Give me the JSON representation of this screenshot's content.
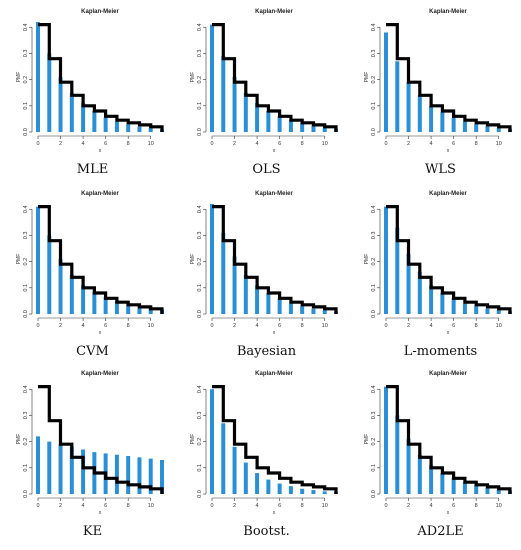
{
  "chart_data": [
    {
      "type": "bar",
      "method": "MLE",
      "title": "Kaplan-Meier",
      "xlabel": "x",
      "ylabel": "PMF",
      "x": [
        0,
        1,
        2,
        3,
        4,
        5,
        6,
        7,
        8,
        9,
        10,
        11
      ],
      "xlim": [
        0,
        11
      ],
      "ylim": [
        0,
        0.42
      ],
      "xticks": [
        0,
        2,
        4,
        6,
        8,
        10
      ],
      "yticks": [
        0.0,
        0.1,
        0.2,
        0.3,
        0.4
      ],
      "km_pmf": [
        0.41,
        0.28,
        0.19,
        0.14,
        0.1,
        0.08,
        0.06,
        0.045,
        0.035,
        0.027,
        0.02,
        0.015
      ],
      "fitted_pmf": [
        0.42,
        0.3,
        0.21,
        0.15,
        0.11,
        0.08,
        0.055,
        0.04,
        0.03,
        0.02,
        0.015,
        0.01
      ]
    },
    {
      "type": "bar",
      "method": "OLS",
      "title": "Kaplan-Meier",
      "xlabel": "x",
      "ylabel": "PMF",
      "x": [
        0,
        1,
        2,
        3,
        4,
        5,
        6,
        7,
        8,
        9,
        10,
        11
      ],
      "xlim": [
        0,
        11
      ],
      "ylim": [
        0,
        0.42
      ],
      "xticks": [
        0,
        2,
        4,
        6,
        8,
        10
      ],
      "yticks": [
        0.0,
        0.1,
        0.2,
        0.3,
        0.4
      ],
      "km_pmf": [
        0.41,
        0.28,
        0.19,
        0.14,
        0.1,
        0.08,
        0.06,
        0.045,
        0.035,
        0.027,
        0.02,
        0.015
      ],
      "fitted_pmf": [
        0.41,
        0.29,
        0.21,
        0.15,
        0.11,
        0.08,
        0.06,
        0.045,
        0.035,
        0.025,
        0.018,
        0.013
      ]
    },
    {
      "type": "bar",
      "method": "WLS",
      "title": "Kaplan-Meier",
      "xlabel": "x",
      "ylabel": "PMF",
      "x": [
        0,
        1,
        2,
        3,
        4,
        5,
        6,
        7,
        8,
        9,
        10,
        11
      ],
      "xlim": [
        0,
        11
      ],
      "ylim": [
        0,
        0.42
      ],
      "xticks": [
        0,
        2,
        4,
        6,
        8,
        10
      ],
      "yticks": [
        0.0,
        0.1,
        0.2,
        0.3,
        0.4
      ],
      "km_pmf": [
        0.41,
        0.28,
        0.19,
        0.14,
        0.1,
        0.08,
        0.06,
        0.045,
        0.035,
        0.027,
        0.02,
        0.015
      ],
      "fitted_pmf": [
        0.38,
        0.27,
        0.19,
        0.14,
        0.1,
        0.075,
        0.055,
        0.04,
        0.03,
        0.022,
        0.016,
        0.012
      ]
    },
    {
      "type": "bar",
      "method": "CVM",
      "title": "Kaplan-Meier",
      "xlabel": "x",
      "ylabel": "PMF",
      "x": [
        0,
        1,
        2,
        3,
        4,
        5,
        6,
        7,
        8,
        9,
        10,
        11
      ],
      "xlim": [
        0,
        11
      ],
      "ylim": [
        0,
        0.42
      ],
      "xticks": [
        0,
        2,
        4,
        6,
        8,
        10
      ],
      "yticks": [
        0.0,
        0.1,
        0.2,
        0.3,
        0.4
      ],
      "km_pmf": [
        0.41,
        0.28,
        0.19,
        0.14,
        0.1,
        0.08,
        0.06,
        0.045,
        0.035,
        0.027,
        0.02,
        0.015
      ],
      "fitted_pmf": [
        0.41,
        0.3,
        0.21,
        0.15,
        0.11,
        0.085,
        0.065,
        0.05,
        0.04,
        0.03,
        0.022,
        0.016
      ]
    },
    {
      "type": "bar",
      "method": "Bayesian",
      "title": "Kaplan-Meier",
      "xlabel": "x",
      "ylabel": "PMF",
      "x": [
        0,
        1,
        2,
        3,
        4,
        5,
        6,
        7,
        8,
        9,
        10,
        11
      ],
      "xlim": [
        0,
        11
      ],
      "ylim": [
        0,
        0.42
      ],
      "xticks": [
        0,
        2,
        4,
        6,
        8,
        10
      ],
      "yticks": [
        0.0,
        0.1,
        0.2,
        0.3,
        0.4
      ],
      "km_pmf": [
        0.41,
        0.28,
        0.19,
        0.14,
        0.1,
        0.08,
        0.06,
        0.045,
        0.035,
        0.027,
        0.02,
        0.015
      ],
      "fitted_pmf": [
        0.42,
        0.31,
        0.22,
        0.15,
        0.11,
        0.08,
        0.06,
        0.04,
        0.03,
        0.02,
        0.015,
        0.01
      ]
    },
    {
      "type": "bar",
      "method": "L-moments",
      "title": "Kaplan-Meier",
      "xlabel": "x",
      "ylabel": "PMF",
      "x": [
        0,
        1,
        2,
        3,
        4,
        5,
        6,
        7,
        8,
        9,
        10,
        11
      ],
      "xlim": [
        0,
        11
      ],
      "ylim": [
        0,
        0.42
      ],
      "xticks": [
        0,
        2,
        4,
        6,
        8,
        10
      ],
      "yticks": [
        0.0,
        0.1,
        0.2,
        0.3,
        0.4
      ],
      "km_pmf": [
        0.41,
        0.28,
        0.19,
        0.14,
        0.1,
        0.08,
        0.06,
        0.045,
        0.035,
        0.027,
        0.02,
        0.015
      ],
      "fitted_pmf": [
        0.41,
        0.33,
        0.23,
        0.16,
        0.11,
        0.08,
        0.06,
        0.04,
        0.03,
        0.02,
        0.015,
        0.01
      ]
    },
    {
      "type": "bar",
      "method": "KE",
      "title": "Kaplan-Meier",
      "xlabel": "x",
      "ylabel": "PMF",
      "x": [
        0,
        1,
        2,
        3,
        4,
        5,
        6,
        7,
        8,
        9,
        10,
        11
      ],
      "xlim": [
        0,
        11
      ],
      "ylim": [
        0,
        0.42
      ],
      "xticks": [
        0,
        2,
        4,
        6,
        8,
        10
      ],
      "yticks": [
        0.0,
        0.1,
        0.2,
        0.3,
        0.4
      ],
      "km_pmf": [
        0.41,
        0.28,
        0.19,
        0.14,
        0.1,
        0.08,
        0.06,
        0.045,
        0.035,
        0.027,
        0.02,
        0.015
      ],
      "fitted_pmf": [
        0.22,
        0.2,
        0.19,
        0.18,
        0.17,
        0.16,
        0.155,
        0.15,
        0.145,
        0.14,
        0.135,
        0.13
      ]
    },
    {
      "type": "bar",
      "method": "Bootst.",
      "title": "Kaplan-Meier",
      "xlabel": "x",
      "ylabel": "PMF",
      "x": [
        0,
        1,
        2,
        3,
        4,
        5,
        6,
        7,
        8,
        9,
        10,
        11
      ],
      "xlim": [
        0,
        11
      ],
      "ylim": [
        0,
        0.42
      ],
      "xticks": [
        0,
        2,
        4,
        6,
        8,
        10
      ],
      "yticks": [
        0.0,
        0.1,
        0.2,
        0.3,
        0.4
      ],
      "km_pmf": [
        0.41,
        0.28,
        0.19,
        0.14,
        0.1,
        0.08,
        0.06,
        0.045,
        0.035,
        0.027,
        0.02,
        0.015
      ],
      "fitted_pmf": [
        0.4,
        0.27,
        0.18,
        0.12,
        0.08,
        0.055,
        0.04,
        0.03,
        0.02,
        0.015,
        0.01,
        0.008
      ]
    },
    {
      "type": "bar",
      "method": "AD2LE",
      "title": "Kaplan-Meier",
      "xlabel": "x",
      "ylabel": "PMF",
      "x": [
        0,
        1,
        2,
        3,
        4,
        5,
        6,
        7,
        8,
        9,
        10,
        11
      ],
      "xlim": [
        0,
        11
      ],
      "ylim": [
        0,
        0.42
      ],
      "xticks": [
        0,
        2,
        4,
        6,
        8,
        10
      ],
      "yticks": [
        0.0,
        0.1,
        0.2,
        0.3,
        0.4
      ],
      "km_pmf": [
        0.41,
        0.28,
        0.19,
        0.14,
        0.1,
        0.08,
        0.06,
        0.045,
        0.035,
        0.027,
        0.02,
        0.015
      ],
      "fitted_pmf": [
        0.41,
        0.3,
        0.21,
        0.15,
        0.11,
        0.08,
        0.06,
        0.045,
        0.035,
        0.025,
        0.018,
        0.013
      ]
    }
  ],
  "colors": {
    "bars": "#2b8fd6",
    "step": "#000000"
  }
}
